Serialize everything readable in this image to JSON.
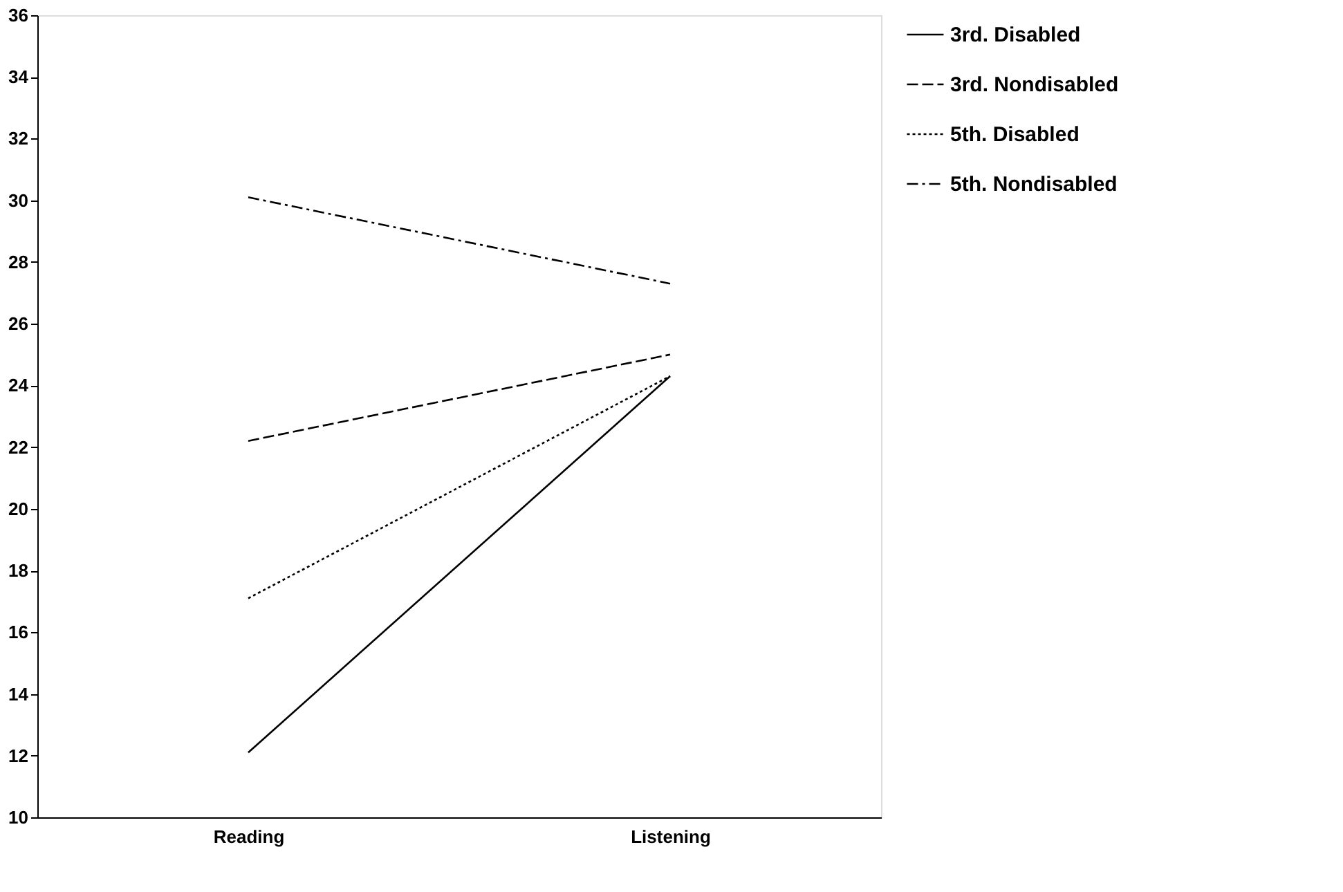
{
  "chart_data": {
    "type": "line",
    "categories": [
      "Reading",
      "Listening"
    ],
    "series": [
      {
        "name": "3rd. Disabled",
        "color": "#000000",
        "line_style": "solid",
        "values": [
          12.1,
          24.3
        ]
      },
      {
        "name": "3rd. Nondisabled",
        "color": "#000000",
        "line_style": "dashed",
        "values": [
          22.2,
          25.0
        ]
      },
      {
        "name": "5th. Disabled",
        "color": "#000000",
        "line_style": "dotted",
        "values": [
          17.1,
          24.3
        ]
      },
      {
        "name": "5th. Nondisabled",
        "color": "#000000",
        "line_style": "dashdot",
        "values": [
          30.1,
          27.3
        ]
      }
    ],
    "ylim": [
      10,
      36
    ],
    "yticks": [
      10,
      12,
      14,
      16,
      18,
      20,
      22,
      24,
      26,
      28,
      30,
      32,
      34,
      36
    ],
    "grid": false,
    "legend": "right",
    "marker": "none"
  }
}
